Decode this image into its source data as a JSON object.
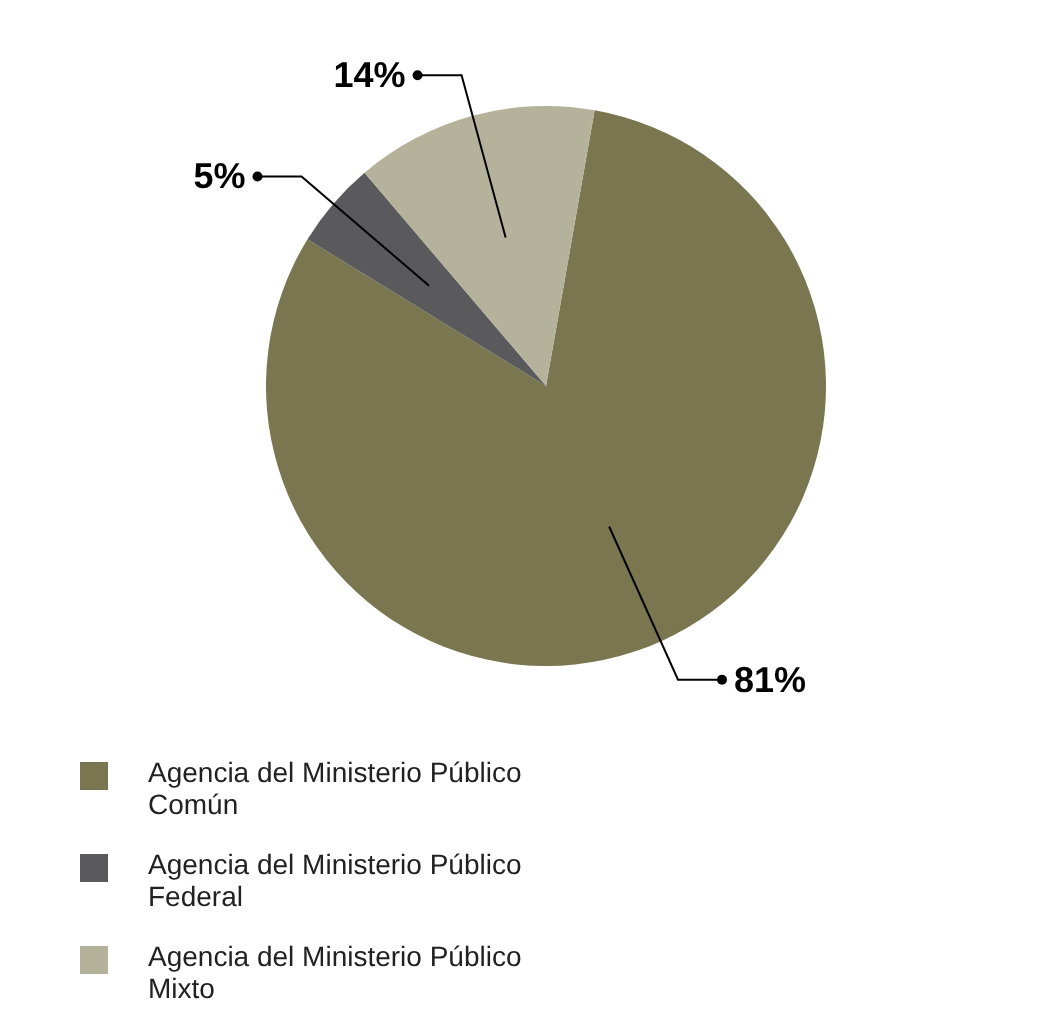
{
  "chart_data": {
    "type": "pie",
    "categories": [
      "Agencia del Ministerio Público Común",
      "Agencia del Ministerio Público Federal",
      "Agencia del Ministerio Público Mixto"
    ],
    "values": [
      81,
      5,
      14
    ],
    "colors": [
      "#7a7650",
      "#5a5a5c",
      "#b5b29c"
    ],
    "value_labels": [
      "81%",
      "5%",
      "14%"
    ],
    "legend": "bottom"
  }
}
